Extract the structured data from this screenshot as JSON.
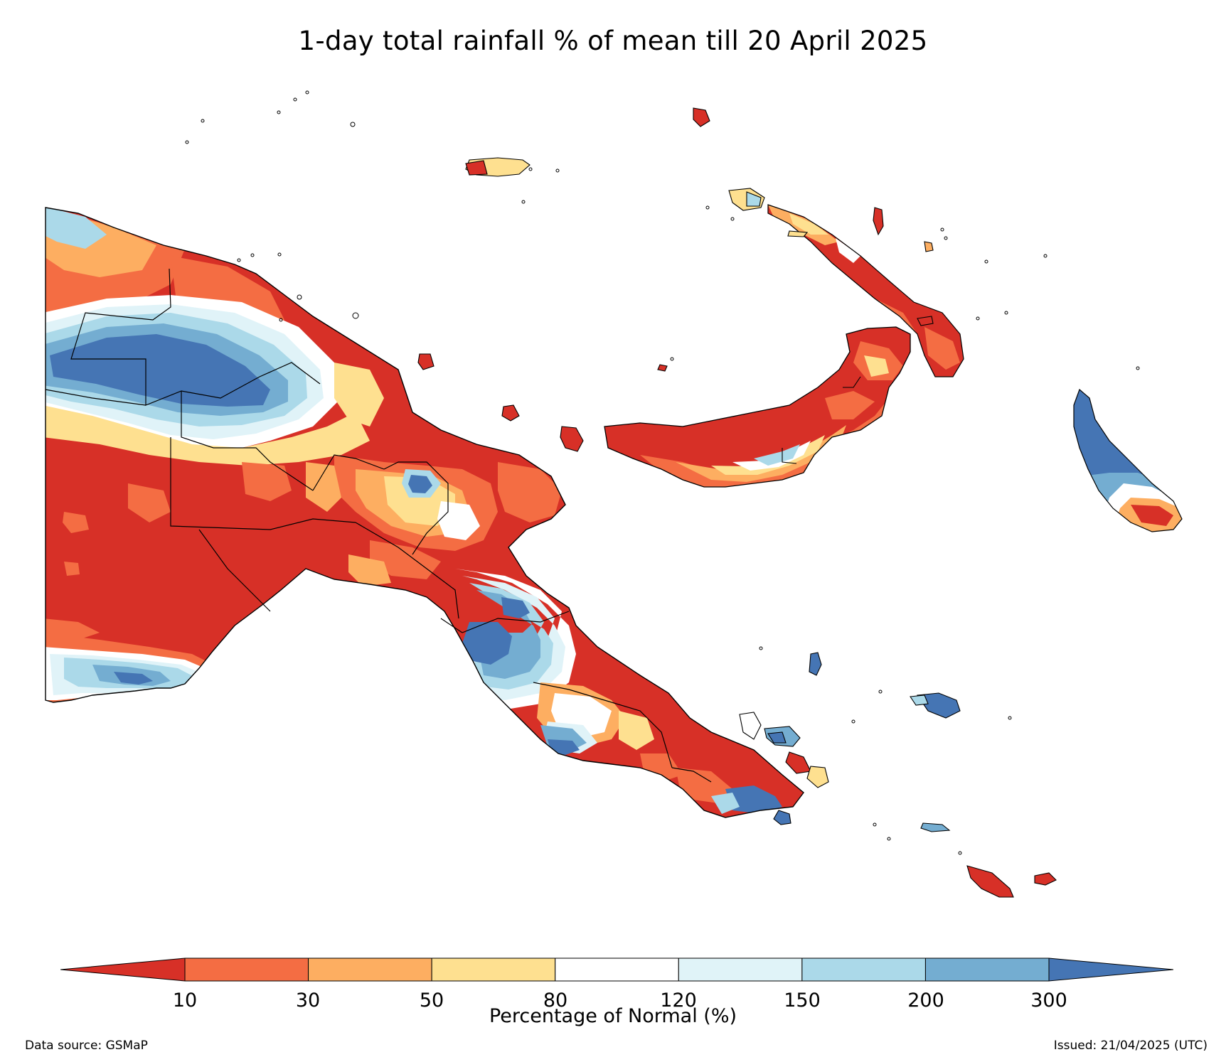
{
  "title": "1-day total rainfall % of mean till 20 April 2025",
  "colorbar": {
    "label": "Percentage of Normal (%)",
    "ticks": [
      "10",
      "30",
      "50",
      "80",
      "120",
      "150",
      "200",
      "300"
    ],
    "under_color": "#d73027",
    "over_color": "#4575b4",
    "bins": [
      {
        "range": "10-30",
        "color": "#f46d43"
      },
      {
        "range": "30-50",
        "color": "#fdae61"
      },
      {
        "range": "50-80",
        "color": "#fee090"
      },
      {
        "range": "80-120",
        "color": "#ffffff"
      },
      {
        "range": "120-150",
        "color": "#e0f3f8"
      },
      {
        "range": "150-200",
        "color": "#abd9e9"
      },
      {
        "range": "200-300",
        "color": "#74add1"
      }
    ]
  },
  "footer": {
    "source": "Data source: GSMaP",
    "issued": "Issued: 21/04/2025 (UTC)"
  },
  "map": {
    "region": "Papua New Guinea",
    "palette": {
      "very_low": "#d73027",
      "low": "#f46d43",
      "mid_low": "#fdae61",
      "near_low": "#fee090",
      "normal": "#ffffff",
      "near_high": "#e0f3f8",
      "high": "#abd9e9",
      "very_high": "#74add1",
      "extreme": "#4575b4",
      "border": "#000000"
    }
  }
}
